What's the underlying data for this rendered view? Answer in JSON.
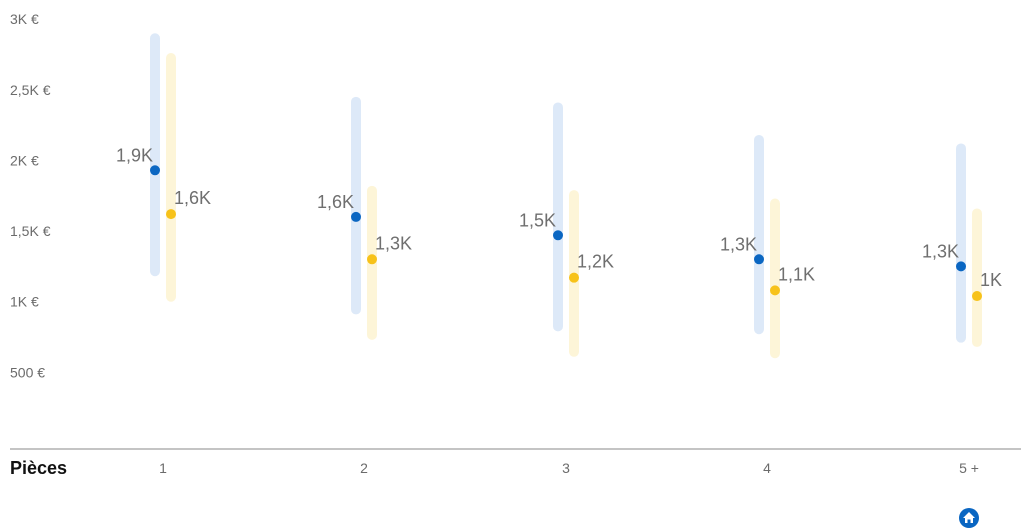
{
  "chart_data": {
    "type": "range-dot",
    "xlabel": "Pièces",
    "categories": [
      "1",
      "2",
      "3",
      "4",
      "5 +"
    ],
    "y_ticks": [
      "3K €",
      "2,5K €",
      "2K €",
      "1,5K €",
      "1K €",
      "500 €"
    ],
    "y_tick_values": [
      3000,
      2500,
      2000,
      1500,
      1000,
      500
    ],
    "ylim": [
      0,
      3000
    ],
    "series": [
      {
        "color": "#0a66c2",
        "range_color": "#dde9f8",
        "values": [
          1930,
          1600,
          1470,
          1300,
          1250
        ],
        "labels": [
          "1,9K",
          "1,6K",
          "1,5K",
          "1,3K",
          "1,3K"
        ],
        "ranges": [
          [
            1180,
            2900
          ],
          [
            910,
            2450
          ],
          [
            790,
            2410
          ],
          [
            770,
            2180
          ],
          [
            710,
            2120
          ]
        ]
      },
      {
        "color": "#f7c21a",
        "range_color": "#fdf5d8",
        "values": [
          1620,
          1300,
          1170,
          1080,
          1040
        ],
        "labels": [
          "1,6K",
          "1,3K",
          "1,2K",
          "1,1K",
          "1K"
        ],
        "ranges": [
          [
            1000,
            2760
          ],
          [
            730,
            1820
          ],
          [
            610,
            1790
          ],
          [
            600,
            1730
          ],
          [
            680,
            1660
          ]
        ]
      }
    ],
    "grid": false
  },
  "footer": {
    "icon": "home-icon"
  }
}
